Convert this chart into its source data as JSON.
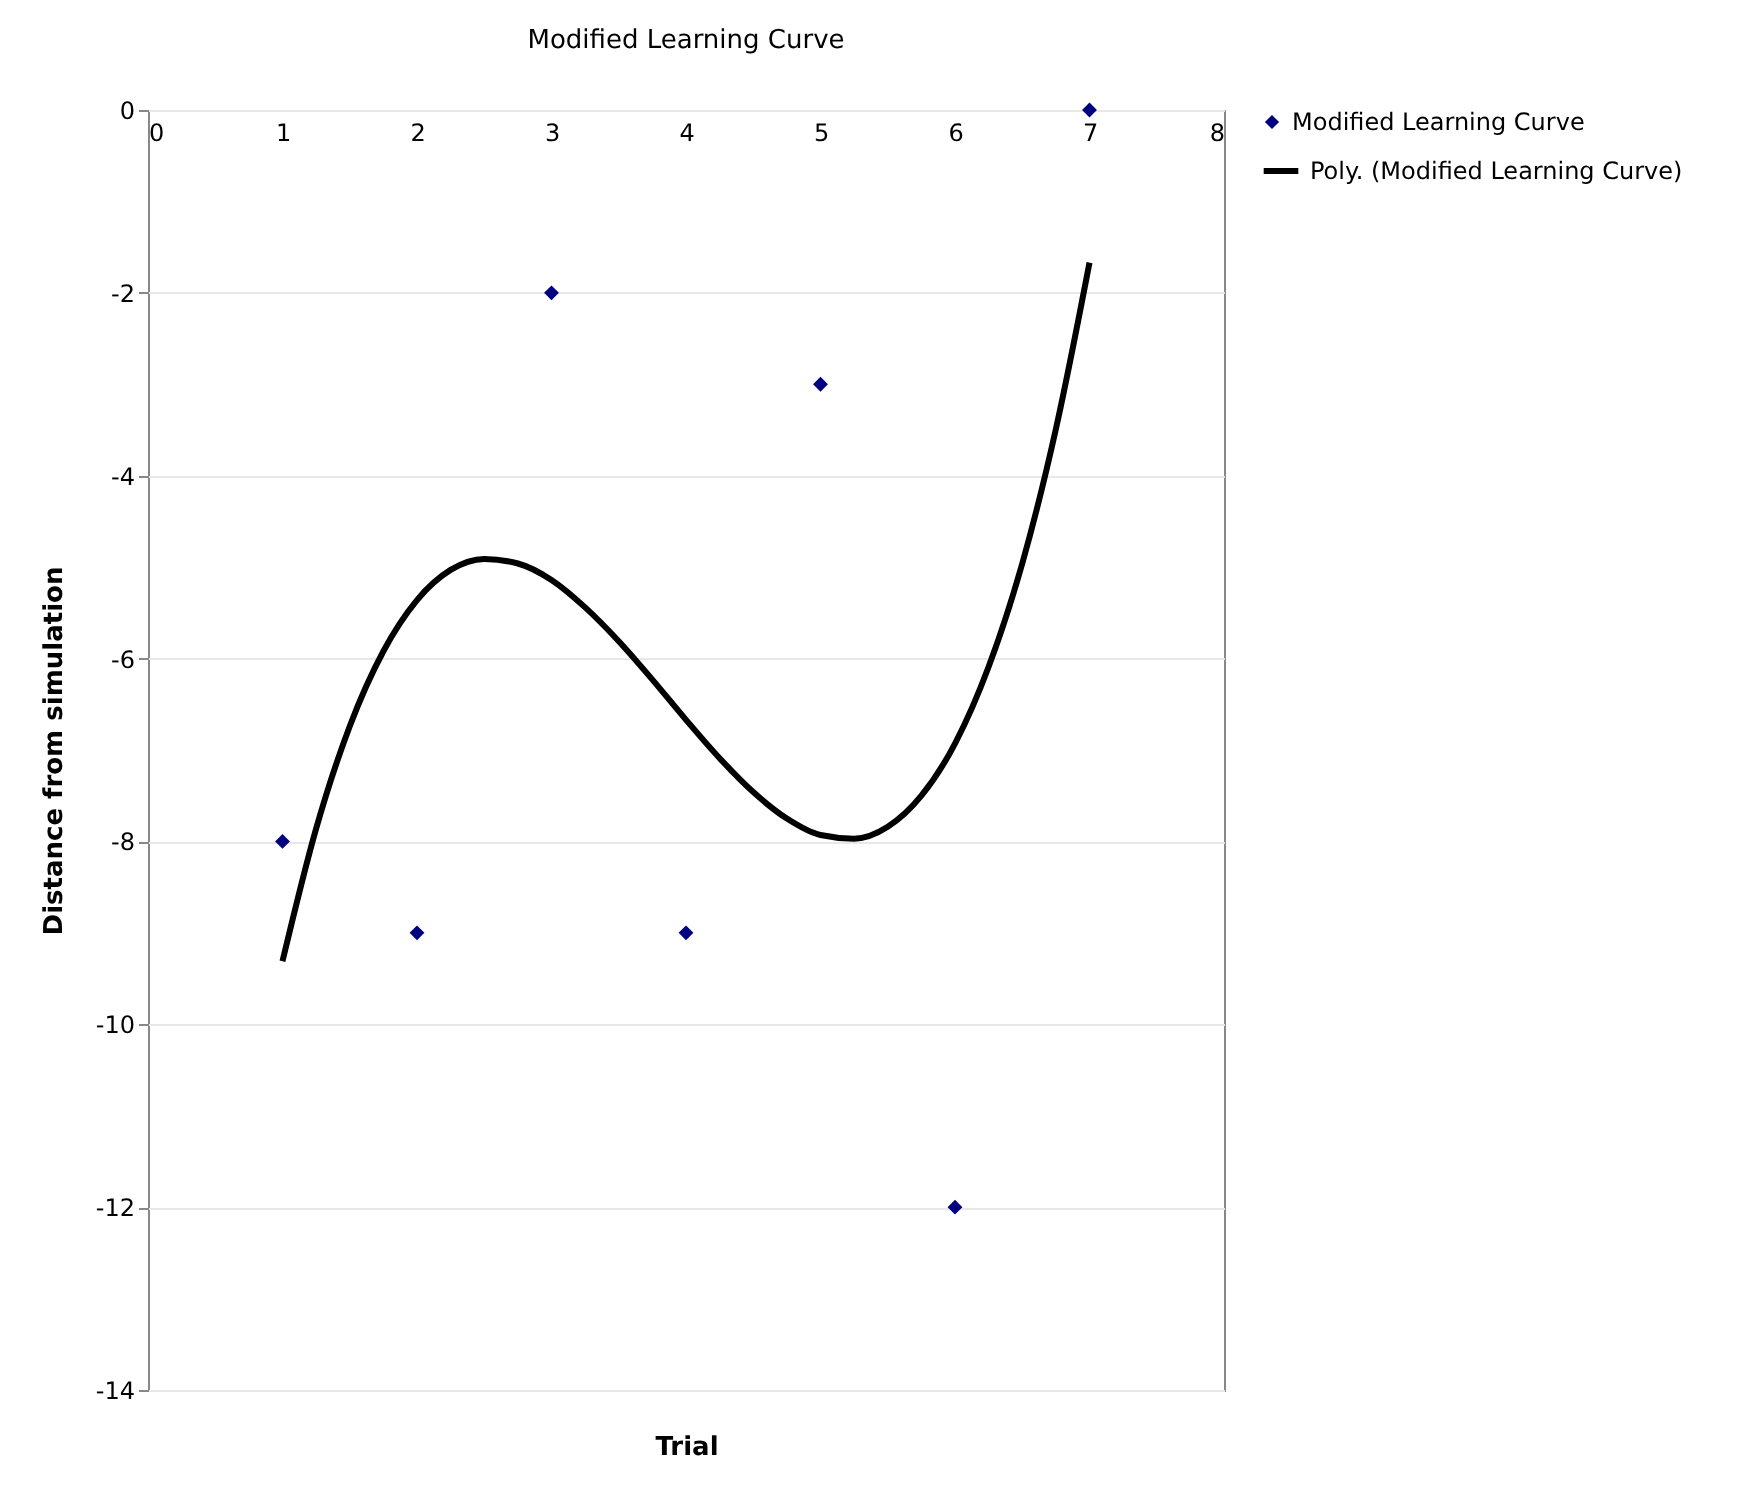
{
  "chart_data": {
    "type": "scatter",
    "title": "Modified Learning Curve",
    "xlabel": "Trial",
    "ylabel": "Distance from simulation",
    "xlim": [
      0,
      8
    ],
    "xticks": [
      0,
      1,
      2,
      3,
      4,
      5,
      6,
      7,
      8
    ],
    "ylim": [
      -14,
      0
    ],
    "yticks": [
      -14,
      -12,
      -10,
      -8,
      -6,
      -4,
      -2,
      0
    ],
    "grid": "y",
    "legend": "right",
    "series": [
      {
        "name": "Modified Learning Curve",
        "marker": "diamond",
        "color": "#000080",
        "x": [
          1,
          2,
          3,
          4,
          5,
          6,
          7
        ],
        "values": [
          -8,
          -9,
          -2,
          -9,
          -3,
          -12,
          0
        ]
      },
      {
        "name": "Poly. (Modified Learning Curve)",
        "type": "line",
        "line_style": "solid",
        "color": "#000000",
        "x": [
          1,
          1.25,
          1.5,
          1.75,
          2,
          2.25,
          2.5,
          2.75,
          3,
          3.25,
          3.5,
          3.75,
          4,
          4.25,
          4.5,
          4.75,
          5,
          5.25,
          5.5,
          5.75,
          6,
          6.25,
          6.5,
          6.75,
          7
        ],
        "values": [
          -9.31,
          -7.86,
          -6.74,
          -5.92,
          -5.36,
          -5.03,
          -4.91,
          -4.96,
          -5.14,
          -5.44,
          -5.81,
          -6.23,
          -6.67,
          -7.09,
          -7.46,
          -7.75,
          -7.93,
          -7.97,
          -7.84,
          -7.5,
          -6.93,
          -6.09,
          -4.96,
          -3.49,
          -1.67
        ]
      }
    ]
  }
}
